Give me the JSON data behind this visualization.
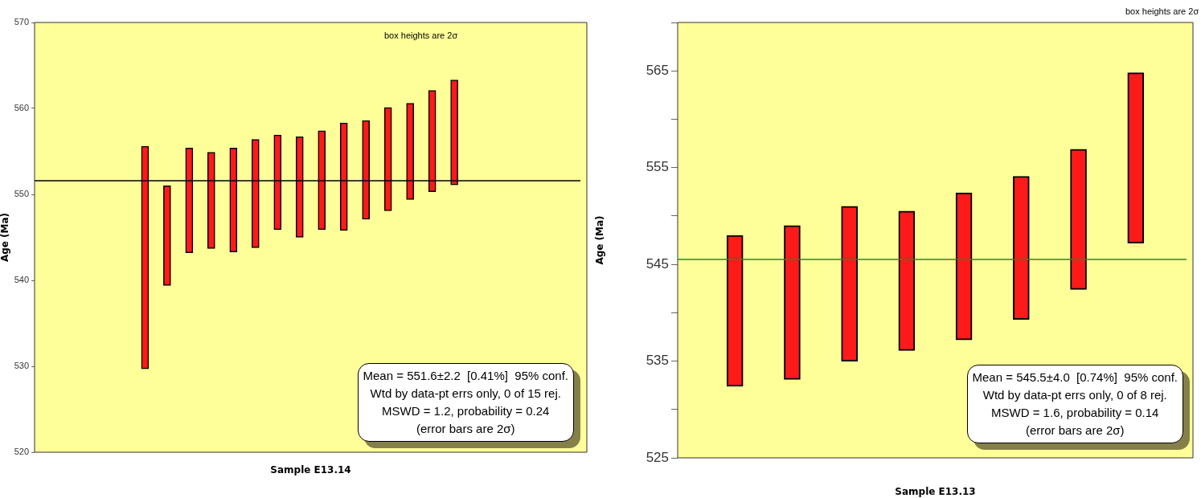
{
  "chart_data": [
    {
      "type": "bar",
      "xlabel": "Sample E13.14",
      "ylabel": "Age (Ma)",
      "categories": [
        null,
        null,
        null,
        null,
        null,
        null,
        null,
        null,
        null,
        null,
        null,
        null,
        null,
        null,
        null,
        null,
        null,
        null,
        null,
        null,
        null,
        null,
        null,
        null,
        null,
        null
      ],
      "base": [
        null,
        null,
        null,
        null,
        null,
        529.7,
        539.4,
        543.2,
        543.7,
        543.3,
        543.8,
        545.9,
        545.0,
        545.9,
        545.8,
        547.1,
        548.1,
        549.4,
        550.3,
        551.1,
        null,
        null,
        null,
        null,
        null,
        null
      ],
      "values": [
        null,
        null,
        null,
        null,
        null,
        25.9,
        11.6,
        12.2,
        11.2,
        12.1,
        12.6,
        11.0,
        11.7,
        11.5,
        12.5,
        11.5,
        12.0,
        11.2,
        11.8,
        12.2,
        null,
        null,
        null,
        null,
        null,
        null
      ],
      "color": "#ff1a1a",
      "ylim": [
        520,
        570
      ],
      "yticks": [
        520,
        530,
        540,
        550,
        560,
        570
      ],
      "grid": false,
      "tick_labels": "y",
      "ref_lines": [
        {
          "axis": "y",
          "value": 551.6,
          "color": "#000000"
        }
      ],
      "annotations": [
        "box heights are 2σ",
        "Mean = 551.6±2.2  [0.41%]  95% conf.\nWtd by data-pt errs only, 0 of 15 rej.\nMSWD = 1.2, probability = 0.24\n(error bars are 2σ)"
      ]
    },
    {
      "type": "bar",
      "xlabel": "Sample E13.13",
      "ylabel": "Age (Ma)",
      "categories": [
        null,
        null,
        null,
        null,
        null,
        null,
        null,
        null,
        null,
        null
      ],
      "base": [
        null,
        532.4,
        533.1,
        535.0,
        536.1,
        537.2,
        539.3,
        542.4,
        547.2,
        null
      ],
      "values": [
        null,
        15.6,
        15.9,
        16.0,
        14.4,
        15.2,
        14.8,
        14.5,
        17.6,
        null
      ],
      "color": "#ff1a1a",
      "ylim": [
        525,
        570
      ],
      "yticks": [
        525,
        {
          "value": 530,
          "label": null
        },
        535,
        {
          "value": 540,
          "label": null
        },
        545,
        {
          "value": 550,
          "label": null
        },
        555,
        {
          "value": 560,
          "label": null
        },
        565,
        {
          "value": 570,
          "label": null
        }
      ],
      "grid": false,
      "tick_labels": "y",
      "ref_lines": [
        {
          "axis": "y",
          "value": 545.5,
          "color": "#228b22"
        }
      ],
      "annotations": [
        "box heights are 2σ",
        "Mean = 545.5±4.0  [0.74%]  95% conf.\nWtd by data-pt errs only, 0 of 8 rej.\nMSWD = 1.6, probability = 0.14\n(error bars are 2σ)"
      ]
    }
  ]
}
